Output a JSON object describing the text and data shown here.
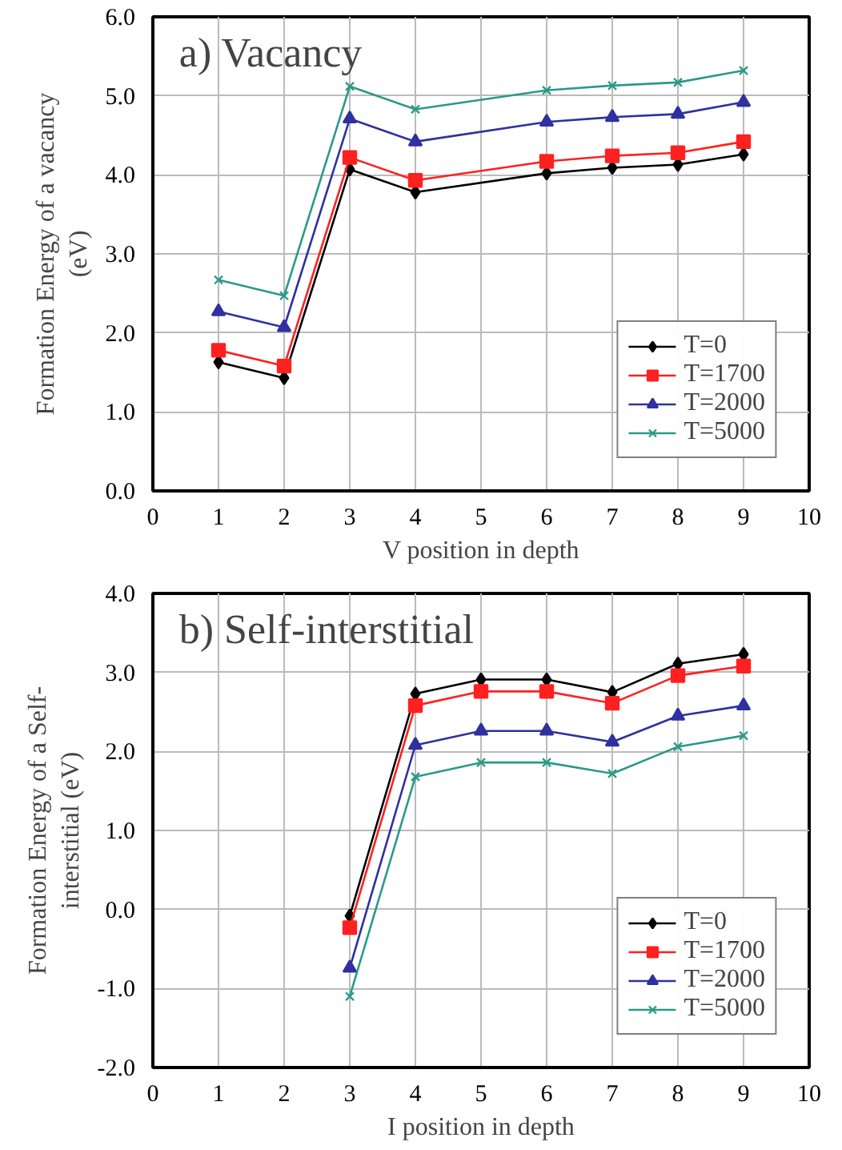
{
  "chart_data": [
    {
      "type": "line",
      "title": "a)  Vacancy",
      "xlabel": "V position in depth",
      "ylabel": "Formation Energy of a vacancy\n(eV)",
      "x": [
        1,
        2,
        3,
        4,
        6,
        7,
        8,
        9
      ],
      "series": [
        {
          "name": "T=0",
          "color": "#000000",
          "marker": "diamond",
          "values": [
            1.63,
            1.43,
            4.07,
            3.78,
            4.02,
            4.09,
            4.13,
            4.26
          ]
        },
        {
          "name": "T=1700",
          "color": "#ff2020",
          "marker": "square",
          "values": [
            1.78,
            1.58,
            4.22,
            3.93,
            4.17,
            4.24,
            4.28,
            4.42
          ]
        },
        {
          "name": "T=2000",
          "color": "#3030a0",
          "marker": "triangle",
          "values": [
            2.27,
            2.07,
            4.71,
            4.42,
            4.67,
            4.73,
            4.77,
            4.92
          ]
        },
        {
          "name": "T=5000",
          "color": "#2a9a88",
          "marker": "cross",
          "values": [
            2.67,
            2.47,
            5.12,
            4.83,
            5.07,
            5.13,
            5.17,
            5.32
          ]
        }
      ],
      "xlim": [
        0,
        10
      ],
      "xticks": [
        0,
        1,
        2,
        3,
        4,
        5,
        6,
        7,
        8,
        9,
        10
      ],
      "ylim": [
        0,
        6
      ],
      "yticks": [
        {
          "value": 0,
          "label": "0.0"
        },
        {
          "value": 1,
          "label": "1.0"
        },
        {
          "value": 2,
          "label": "2.0"
        },
        {
          "value": 3,
          "label": "3.0"
        },
        {
          "value": 4,
          "label": "4.0"
        },
        {
          "value": 5,
          "label": "5.0"
        },
        {
          "value": 6,
          "label": "6.0"
        }
      ],
      "grid": true,
      "legend": "bottom right",
      "line_style": "solid"
    },
    {
      "type": "line",
      "title": "b) Self-interstitial",
      "xlabel": "I position in depth",
      "ylabel": "Formation Energy of a Self-\ninterstitial (eV)",
      "x": [
        3,
        4,
        5,
        6,
        7,
        8,
        9
      ],
      "series": [
        {
          "name": "T=0",
          "color": "#000000",
          "marker": "diamond",
          "values": [
            -0.08,
            2.73,
            2.91,
            2.91,
            2.75,
            3.11,
            3.23
          ]
        },
        {
          "name": "T=1700",
          "color": "#ff2020",
          "marker": "square",
          "values": [
            -0.23,
            2.58,
            2.76,
            2.76,
            2.61,
            2.96,
            3.08
          ]
        },
        {
          "name": "T=2000",
          "color": "#3030a0",
          "marker": "triangle",
          "values": [
            -0.74,
            2.08,
            2.26,
            2.26,
            2.12,
            2.45,
            2.58
          ]
        },
        {
          "name": "T=5000",
          "color": "#2a9a88",
          "marker": "cross",
          "values": [
            -1.1,
            1.68,
            1.86,
            1.86,
            1.72,
            2.06,
            2.2
          ]
        }
      ],
      "xlim": [
        0,
        10
      ],
      "xticks": [
        0,
        1,
        2,
        3,
        4,
        5,
        6,
        7,
        8,
        9,
        10
      ],
      "ylim": [
        -2,
        4
      ],
      "yticks": [
        {
          "value": -2,
          "label": "-2.0"
        },
        {
          "value": -1,
          "label": "-1.0"
        },
        {
          "value": 0,
          "label": "0.0"
        },
        {
          "value": 1,
          "label": "1.0"
        },
        {
          "value": 2,
          "label": "2.0"
        },
        {
          "value": 3,
          "label": "3.0"
        },
        {
          "value": 4,
          "label": "4.0"
        }
      ],
      "grid": true,
      "legend": "bottom right",
      "line_style": "solid"
    }
  ]
}
